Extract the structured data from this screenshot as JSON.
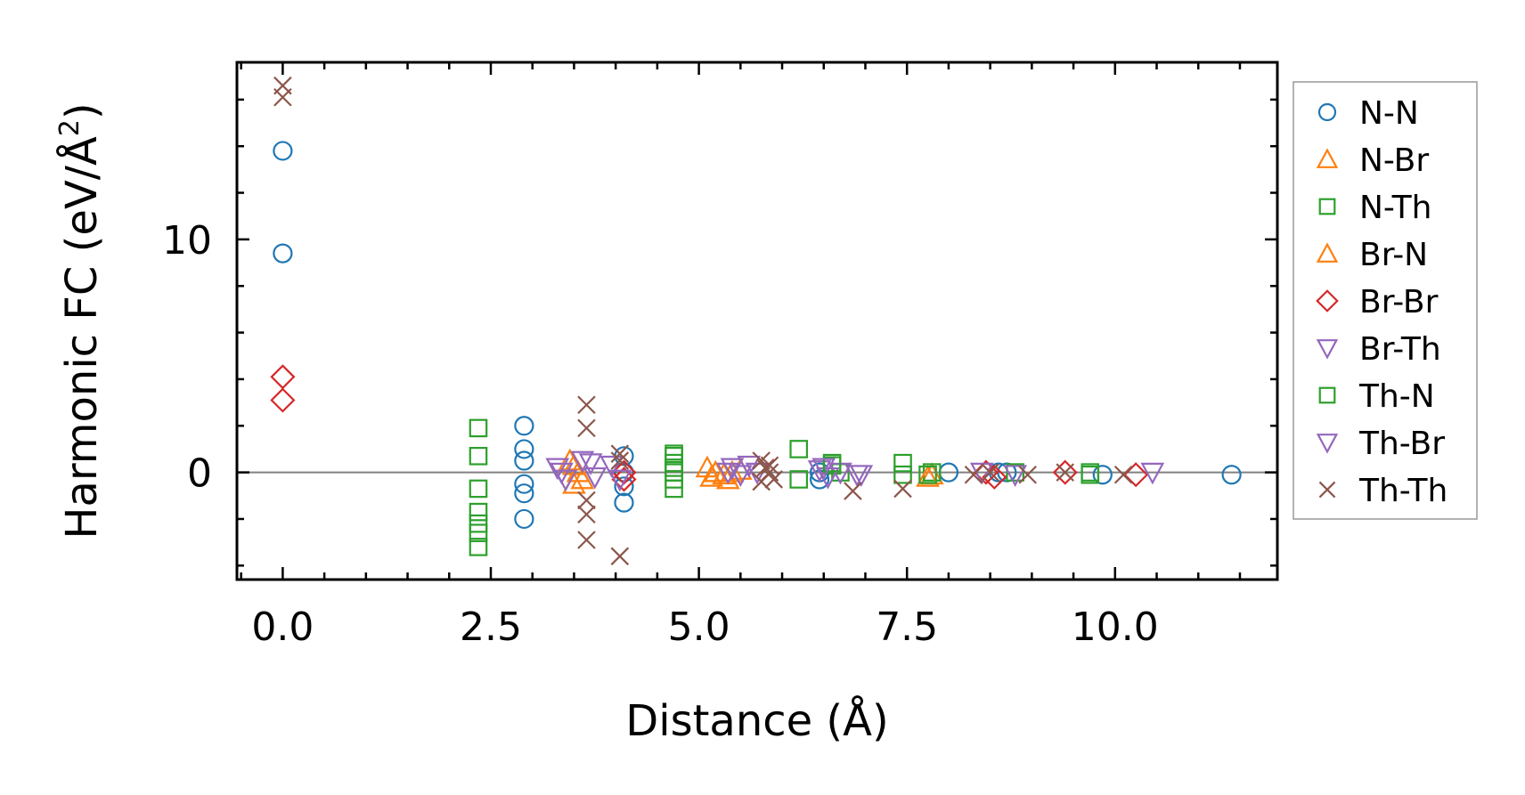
{
  "chart_data": {
    "type": "scatter",
    "title": "",
    "xlabel": "Distance (Å)",
    "ylabel": "Harmonic FC (eV/Å²)",
    "ylabel_parts": {
      "main": "Harmonic FC (eV/Å",
      "sup": "2",
      "close": ")"
    },
    "xlim": [
      -0.55,
      11.95
    ],
    "ylim": [
      -4.6,
      17.6
    ],
    "xticks": [
      0.0,
      2.5,
      5.0,
      7.5,
      10.0
    ],
    "xtick_labels": [
      "0.0",
      "2.5",
      "5.0",
      "7.5",
      "10.0"
    ],
    "yticks": [
      0,
      10
    ],
    "ytick_labels": [
      "0",
      "10"
    ],
    "x_minor_step": 0.5,
    "y_minor_step": 2,
    "zero_line": true,
    "grid": false,
    "legend_position": "outside right",
    "series": [
      {
        "name": "N-N",
        "marker": "circle",
        "color": "#1f77b4",
        "x": [
          0,
          0,
          2.9,
          2.9,
          2.9,
          2.9,
          2.9,
          2.9,
          4.1,
          4.1,
          4.1,
          4.1,
          6.45,
          6.45,
          8.0,
          8.6,
          8.7,
          9.85,
          11.4
        ],
        "y": [
          13.8,
          9.4,
          2.0,
          1.0,
          0.5,
          -0.5,
          -0.9,
          -2.0,
          0.7,
          0.0,
          -0.6,
          -1.3,
          -0.3,
          0.0,
          0.0,
          0.0,
          0.0,
          -0.1,
          -0.1
        ]
      },
      {
        "name": "N-Br",
        "marker": "triangle-up",
        "color": "#ff7f0e",
        "x": [
          3.45,
          3.5,
          3.55,
          5.1,
          5.15,
          5.2,
          5.3,
          5.35,
          5.4,
          5.5,
          7.8
        ],
        "y": [
          0.5,
          -0.5,
          0.0,
          0.2,
          -0.2,
          0.0,
          -0.1,
          -0.3,
          0.0,
          0.1,
          -0.1
        ]
      },
      {
        "name": "N-Th",
        "marker": "square",
        "color": "#2ca02c",
        "x": [
          2.35,
          2.35,
          2.35,
          2.35,
          2.35,
          2.35,
          2.35,
          4.7,
          4.7,
          4.7,
          4.7,
          4.7,
          4.7,
          6.2,
          6.2,
          6.6,
          6.7,
          7.45,
          7.45,
          7.8,
          8.8,
          9.7
        ],
        "y": [
          1.9,
          0.7,
          -0.7,
          -1.7,
          -2.2,
          -2.6,
          -3.2,
          0.7,
          0.4,
          0.0,
          -0.3,
          -0.7,
          0.2,
          1.0,
          -0.3,
          0.3,
          0.0,
          0.4,
          -0.1,
          0.0,
          0.0,
          -0.1
        ]
      },
      {
        "name": "Br-N",
        "marker": "triangle-up",
        "color": "#ff7f0e",
        "x": [
          3.5,
          3.6,
          5.2,
          7.75
        ],
        "y": [
          0.3,
          -0.3,
          0.0,
          -0.2
        ]
      },
      {
        "name": "Br-Br",
        "marker": "diamond",
        "color": "#d62728",
        "x": [
          0,
          0,
          4.1,
          4.1,
          8.45,
          8.55,
          9.4,
          10.25
        ],
        "y": [
          4.1,
          3.1,
          0.0,
          -0.3,
          0.0,
          -0.2,
          0.0,
          -0.1
        ]
      },
      {
        "name": "Br-Th",
        "marker": "triangle-down",
        "color": "#9467bd",
        "x": [
          3.3,
          3.35,
          3.4,
          3.7,
          3.75,
          5.4,
          5.5,
          5.6,
          5.7,
          6.45,
          6.55,
          6.7,
          6.9,
          8.4,
          8.8
        ],
        "y": [
          0.2,
          0.0,
          -0.3,
          0.4,
          -0.2,
          0.2,
          -0.1,
          0.3,
          0.0,
          0.1,
          -0.2,
          0.0,
          -0.1,
          0.0,
          -0.1
        ]
      },
      {
        "name": "Th-N",
        "marker": "square",
        "color": "#2ca02c",
        "x": [
          4.7,
          6.6,
          7.75,
          9.7
        ],
        "y": [
          0.8,
          0.4,
          -0.1,
          0.0
        ]
      },
      {
        "name": "Th-Br",
        "marker": "triangle-down",
        "color": "#9467bd",
        "x": [
          3.6,
          3.95,
          4.05,
          5.35,
          6.5,
          6.95,
          10.45
        ],
        "y": [
          0.5,
          0.3,
          -0.3,
          0.0,
          0.2,
          -0.1,
          0.0
        ]
      },
      {
        "name": "Th-Th",
        "marker": "x",
        "color": "#8c564b",
        "x": [
          0,
          0,
          3.65,
          3.65,
          3.65,
          3.65,
          3.65,
          4.05,
          4.05,
          4.05,
          5.75,
          5.8,
          5.85,
          5.9,
          5.75,
          5.85,
          6.85,
          7.45,
          8.3,
          8.5,
          8.95,
          9.4,
          10.1
        ],
        "y": [
          16.6,
          16.1,
          2.9,
          1.9,
          -1.2,
          -1.8,
          -2.9,
          0.8,
          0.5,
          -3.6,
          0.5,
          0.2,
          0.0,
          -0.3,
          -0.4,
          0.3,
          -0.8,
          -0.7,
          -0.1,
          0.0,
          -0.1,
          0.0,
          -0.1
        ]
      }
    ]
  }
}
